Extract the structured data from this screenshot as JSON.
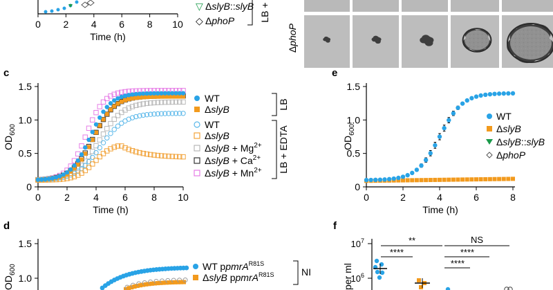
{
  "panels": {
    "a": {
      "xlabel": "Time (h)",
      "xticks": [
        "0",
        "2",
        "4",
        "6",
        "8",
        "10"
      ],
      "legend": {
        "symbol_green_tri": "▽",
        "symbol_diamond": "◇",
        "green": "Δ",
        "green_it": "slyB",
        "green_sep": "::",
        "green_it2": "slyB",
        "phop": "Δ",
        "phop_it": "phoP",
        "bracket": "LB +"
      }
    },
    "b": {
      "row_label": "Δ",
      "row_label_it": "phoP"
    },
    "c": {
      "label": "c",
      "ylabel": "OD",
      "ylabel_sub": "600",
      "xlabel": "Time (h)",
      "yticks": [
        "0",
        "0.5",
        "1.0",
        "1.5"
      ],
      "xticks": [
        "0",
        "2",
        "4",
        "6",
        "8",
        "10"
      ],
      "legend": {
        "wt_lb": "WT",
        "sly_lb_pre": "Δ",
        "sly_lb_it": "slyB",
        "lb_bracket": "LB",
        "wt_edta": "WT",
        "sly_edta_pre": "Δ",
        "sly_edta_it": "slyB",
        "mg_pre": "Δ",
        "mg_it": "slyB",
        "mg_post": " + Mg",
        "mg_sup": "2+",
        "ca_pre": "Δ",
        "ca_it": "slyB",
        "ca_post": " + Ca",
        "ca_sup": "2+",
        "mn_pre": "Δ",
        "mn_it": "slyB",
        "mn_post": " + Mn",
        "mn_sup": "2+",
        "edta_bracket": "LB + EDTA"
      }
    },
    "d": {
      "label": "d",
      "ylabel": "OD",
      "ylabel_sub": "600",
      "yticks": [
        "1.0",
        "1.5"
      ],
      "legend": {
        "wt": "WT p",
        "wt_it": "pmrA",
        "wt_sup": "R81S",
        "sly_pre": "Δ",
        "sly_it": "slyB",
        "sly_mid": " p",
        "sly_it2": "pmrA",
        "sly_sup": "R81S",
        "bracket": "NI"
      }
    },
    "e": {
      "label": "e",
      "ylabel": "OD",
      "ylabel_sub": "600",
      "xlabel": "Time (h)",
      "yticks": [
        "0",
        "0.5",
        "1.0",
        "1.5"
      ],
      "xticks": [
        "0",
        "2",
        "4",
        "6",
        "8"
      ],
      "legend": {
        "wt": "WT",
        "sly_pre": "Δ",
        "sly_it": "slyB",
        "comp_pre": "Δ",
        "comp_it": "slyB",
        "comp_sep": "::",
        "comp_it2": "slyB",
        "phop_pre": "Δ",
        "phop_it": "phoP"
      }
    },
    "f": {
      "label": "f",
      "ylabel": "per ml",
      "ytick_hi": "10",
      "ytick_hi_sup": "7",
      "ytick_mid": "10",
      "ytick_mid_sup": "6",
      "sig1": "**",
      "sig2": "****",
      "sig3": "NS",
      "sig4": "****",
      "sig5": "****"
    }
  },
  "chart_data": [
    {
      "panel": "c",
      "type": "scatter",
      "xlabel": "Time (h)",
      "ylabel": "OD600",
      "xlim": [
        0,
        10
      ],
      "ylim": [
        0,
        1.5
      ],
      "series": [
        {
          "name": "WT (LB)",
          "color": "#29a3e6",
          "marker": "filled-circle",
          "K": 1.4,
          "r": 1.45,
          "t0": 3.6
        },
        {
          "name": "ΔslyB (LB)",
          "color": "#f29a1d",
          "marker": "filled-square",
          "K": 1.35,
          "r": 1.4,
          "t0": 3.8
        },
        {
          "name": "WT (LB + EDTA)",
          "color": "#5bb8ea",
          "marker": "open-circle",
          "K": 1.1,
          "r": 1.2,
          "t0": 4.3
        },
        {
          "name": "ΔslyB (LB + EDTA)",
          "color": "#f2a33a",
          "marker": "open-square",
          "rise": true,
          "peak": 0.63,
          "peak_t": 5.6,
          "final": 0.44
        },
        {
          "name": "ΔslyB + Mg2+",
          "color": "#b8b8b8",
          "marker": "open-square",
          "K": 1.27,
          "r": 1.2,
          "t0": 4.2
        },
        {
          "name": "ΔslyB + Ca2+",
          "color": "#333333",
          "marker": "open-square",
          "K": 1.36,
          "r": 1.35,
          "t0": 3.8
        },
        {
          "name": "ΔslyB + Mn2+",
          "color": "#e67de6",
          "marker": "open-square",
          "K": 1.44,
          "r": 1.6,
          "t0": 3.3
        }
      ]
    },
    {
      "panel": "e",
      "type": "scatter",
      "xlabel": "Time (h)",
      "ylabel": "OD600",
      "xlim": [
        0,
        8
      ],
      "ylim": [
        0,
        1.5
      ],
      "series": [
        {
          "name": "WT",
          "color": "#29a3e6",
          "marker": "filled-circle",
          "K": 1.4,
          "r": 1.6,
          "t0": 4.0,
          "errorbars": true
        },
        {
          "name": "ΔslyB",
          "color": "#f29a1d",
          "marker": "filled-square",
          "flat": 0.09,
          "end": 0.12
        },
        {
          "name": "ΔslyB::slyB",
          "color": "#1a9a4a",
          "marker": "filled-triangle-down"
        },
        {
          "name": "ΔphoP",
          "color": "#555555",
          "marker": "open-diamond"
        }
      ]
    },
    {
      "panel": "d",
      "type": "scatter",
      "ylabel": "OD600",
      "ylim": [
        0,
        1.5
      ],
      "series": [
        {
          "name": "WT ppmrA R81S",
          "color": "#29a3e6",
          "marker": "filled-circle",
          "K": 1.15
        },
        {
          "name": "ΔslyB ppmrA R81S",
          "color": "#f29a1d",
          "marker": "filled-square",
          "K": 0.95
        }
      ]
    }
  ]
}
